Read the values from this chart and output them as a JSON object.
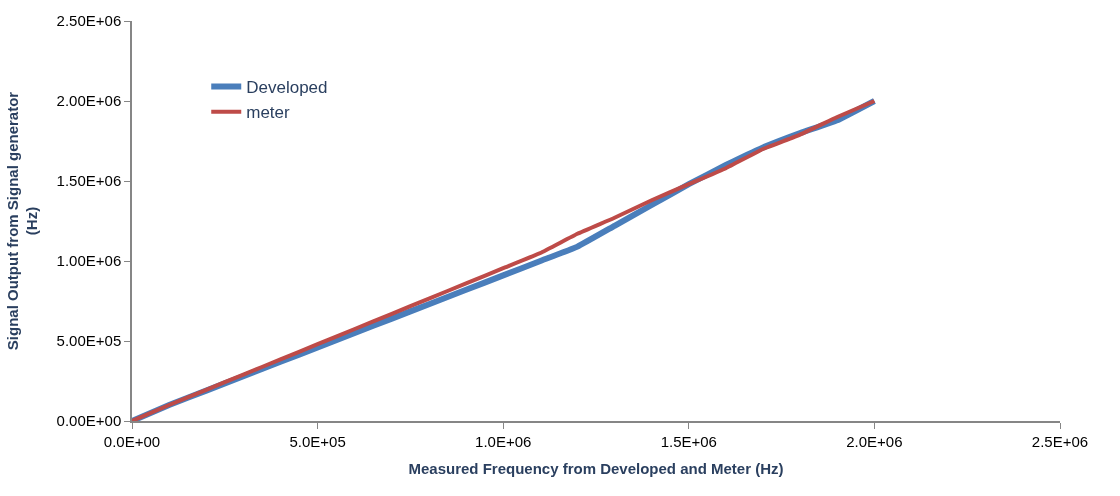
{
  "chart_data": {
    "type": "line",
    "xlabel": "Measured Frequency from Developed and Meter (Hz)",
    "ylabel": "Signal Output from Signal generator (Hz)",
    "x": [
      0,
      100000,
      200000,
      300000,
      400000,
      500000,
      600000,
      700000,
      800000,
      900000,
      1000000,
      1100000,
      1200000,
      1300000,
      1400000,
      1500000,
      1600000,
      1700000,
      1800000,
      1900000,
      2000000
    ],
    "series": [
      {
        "name": "Developed",
        "color": "#4a7ebb",
        "values": [
          0,
          100000,
          190000,
          280000,
          370000,
          460000,
          550000,
          640000,
          730000,
          820000,
          910000,
          1000000,
          1090000,
          1220000,
          1350000,
          1480000,
          1600000,
          1710000,
          1800000,
          1880000,
          2000000
        ]
      },
      {
        "name": "meter",
        "color": "#be4b48",
        "values": [
          0,
          100000,
          195000,
          290000,
          385000,
          480000,
          575000,
          670000,
          765000,
          860000,
          955000,
          1050000,
          1170000,
          1270000,
          1380000,
          1480000,
          1580000,
          1700000,
          1790000,
          1900000,
          2000000
        ]
      }
    ],
    "xlim": [
      0,
      2500000
    ],
    "xticks": [
      {
        "value": 0,
        "label": "0.0E+00"
      },
      {
        "value": 500000,
        "label": "5.0E+05"
      },
      {
        "value": 1000000,
        "label": "1.0E+06"
      },
      {
        "value": 1500000,
        "label": "1.5E+06"
      },
      {
        "value": 2000000,
        "label": "2.0E+06"
      },
      {
        "value": 2500000,
        "label": "2.5E+06"
      }
    ],
    "ylim": [
      0,
      2500000
    ],
    "yticks": [
      {
        "value": 0,
        "label": "0.00E+00"
      },
      {
        "value": 500000,
        "label": "5.00E+05"
      },
      {
        "value": 1000000,
        "label": "1.00E+06"
      },
      {
        "value": 1500000,
        "label": "1.50E+06"
      },
      {
        "value": 2000000,
        "label": "2.00E+06"
      },
      {
        "value": 2500000,
        "label": "2.50E+06"
      }
    ],
    "grid": false,
    "legend": "top left",
    "marker": "none",
    "line_style": "solid"
  }
}
